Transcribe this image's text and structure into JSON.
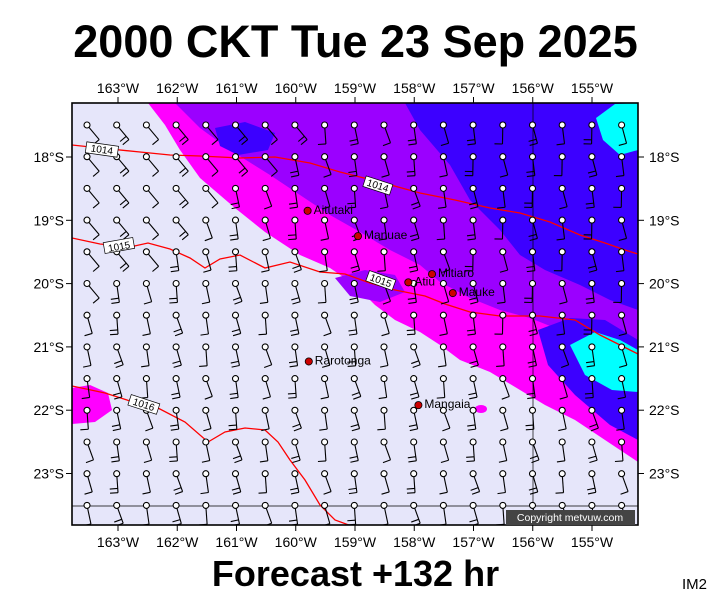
{
  "header": {
    "title": "2000 CKT Tue 23 Sep 2025"
  },
  "footer": {
    "forecast": "Forecast +132 hr",
    "model": "IM2"
  },
  "map": {
    "lon_ticks": [
      "163°W",
      "162°W",
      "161°W",
      "160°W",
      "159°W",
      "158°W",
      "157°W",
      "156°W",
      "155°W"
    ],
    "lat_ticks": [
      "18°S",
      "19°S",
      "20°S",
      "21°S",
      "22°S",
      "23°S"
    ],
    "places": [
      {
        "name": "Aitutaki",
        "lon": -159.8,
        "lat": -18.85
      },
      {
        "name": "Manuae",
        "lon": -158.95,
        "lat": -19.25
      },
      {
        "name": "Mitiaro",
        "lon": -157.7,
        "lat": -19.85
      },
      {
        "name": "Atiu",
        "lon": -158.1,
        "lat": -19.98
      },
      {
        "name": "Mauke",
        "lon": -157.35,
        "lat": -20.15
      },
      {
        "name": "Rarotonga",
        "lon": -159.78,
        "lat": -21.23
      },
      {
        "name": "Mangaia",
        "lon": -157.93,
        "lat": -21.92
      }
    ],
    "isobars": [
      {
        "label": "1014"
      },
      {
        "label": "1015"
      },
      {
        "label": "1016"
      }
    ],
    "copyright": "Copyright metvuw.com",
    "colors": {
      "background": "#e6e6fa",
      "light_rain": "#ff00ff",
      "moderate_rain": "#9b00ff",
      "heavy_rain": "#3c00ff",
      "very_heavy_rain": "#00ffff",
      "isobar": "#ff0000",
      "place_marker": "#cc0000"
    }
  }
}
